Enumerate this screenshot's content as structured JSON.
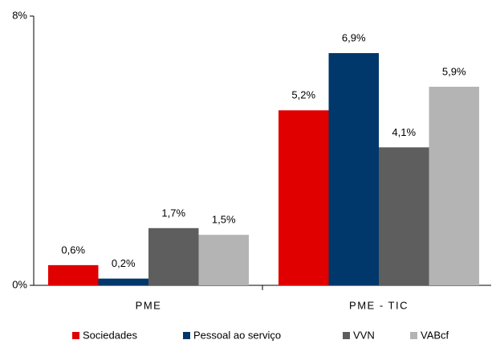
{
  "chart_data": {
    "type": "bar",
    "categories": [
      "PME",
      "PME - TIC"
    ],
    "series": [
      {
        "name": "Sociedades",
        "color": "#e00000",
        "values": [
          0.6,
          5.2
        ],
        "value_labels": [
          "0,6%",
          "5,2%"
        ]
      },
      {
        "name": "Pessoal ao serviço",
        "color": "#00386b",
        "values": [
          0.2,
          6.9
        ],
        "value_labels": [
          "0,2%",
          "6,9%"
        ]
      },
      {
        "name": "VVN",
        "color": "#5e5e5e",
        "values": [
          1.7,
          4.1
        ],
        "value_labels": [
          "1,7%",
          "4,1%"
        ]
      },
      {
        "name": "VABcf",
        "color": "#b4b4b4",
        "values": [
          1.5,
          5.9
        ],
        "value_labels": [
          "1,5%",
          "5,9%"
        ]
      }
    ],
    "ylim": [
      0,
      8
    ],
    "yticks": [
      {
        "value": 0,
        "label": "0%"
      },
      {
        "value": 8,
        "label": "8%"
      }
    ],
    "legend": "bottom"
  }
}
